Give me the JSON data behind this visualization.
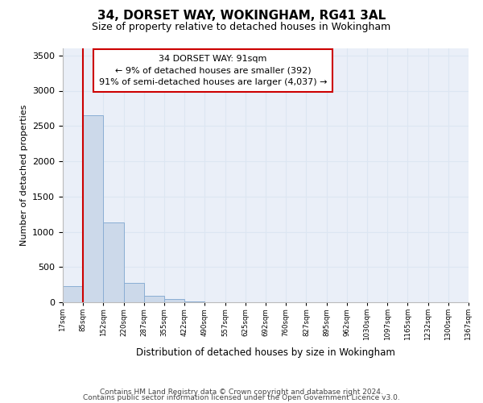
{
  "title1": "34, DORSET WAY, WOKINGHAM, RG41 3AL",
  "title2": "Size of property relative to detached houses in Wokingham",
  "xlabel": "Distribution of detached houses by size in Wokingham",
  "ylabel": "Number of detached properties",
  "footer1": "Contains HM Land Registry data © Crown copyright and database right 2024.",
  "footer2": "Contains public sector information licensed under the Open Government Licence v3.0.",
  "annotation_title": "34 DORSET WAY: 91sqm",
  "annotation_line1": "← 9% of detached houses are smaller (392)",
  "annotation_line2": "91% of semi-detached houses are larger (4,037) →",
  "bar_color": "#ccd9ea",
  "bar_edge_color": "#8aaed4",
  "redline_color": "#cc0000",
  "annotation_box_color": "#ffffff",
  "annotation_box_edge": "#cc0000",
  "bin_labels": [
    "17sqm",
    "85sqm",
    "152sqm",
    "220sqm",
    "287sqm",
    "355sqm",
    "422sqm",
    "490sqm",
    "557sqm",
    "625sqm",
    "692sqm",
    "760sqm",
    "827sqm",
    "895sqm",
    "962sqm",
    "1030sqm",
    "1097sqm",
    "1165sqm",
    "1232sqm",
    "1300sqm",
    "1367sqm"
  ],
  "bar_values": [
    230,
    2650,
    1130,
    280,
    90,
    50,
    15,
    0,
    0,
    0,
    0,
    0,
    0,
    0,
    0,
    0,
    0,
    0,
    0,
    0
  ],
  "ylim": [
    0,
    3600
  ],
  "yticks": [
    0,
    500,
    1000,
    1500,
    2000,
    2500,
    3000,
    3500
  ],
  "redline_x": 1.0,
  "grid_color": "#dce6f2",
  "bg_color": "#eaeff8"
}
